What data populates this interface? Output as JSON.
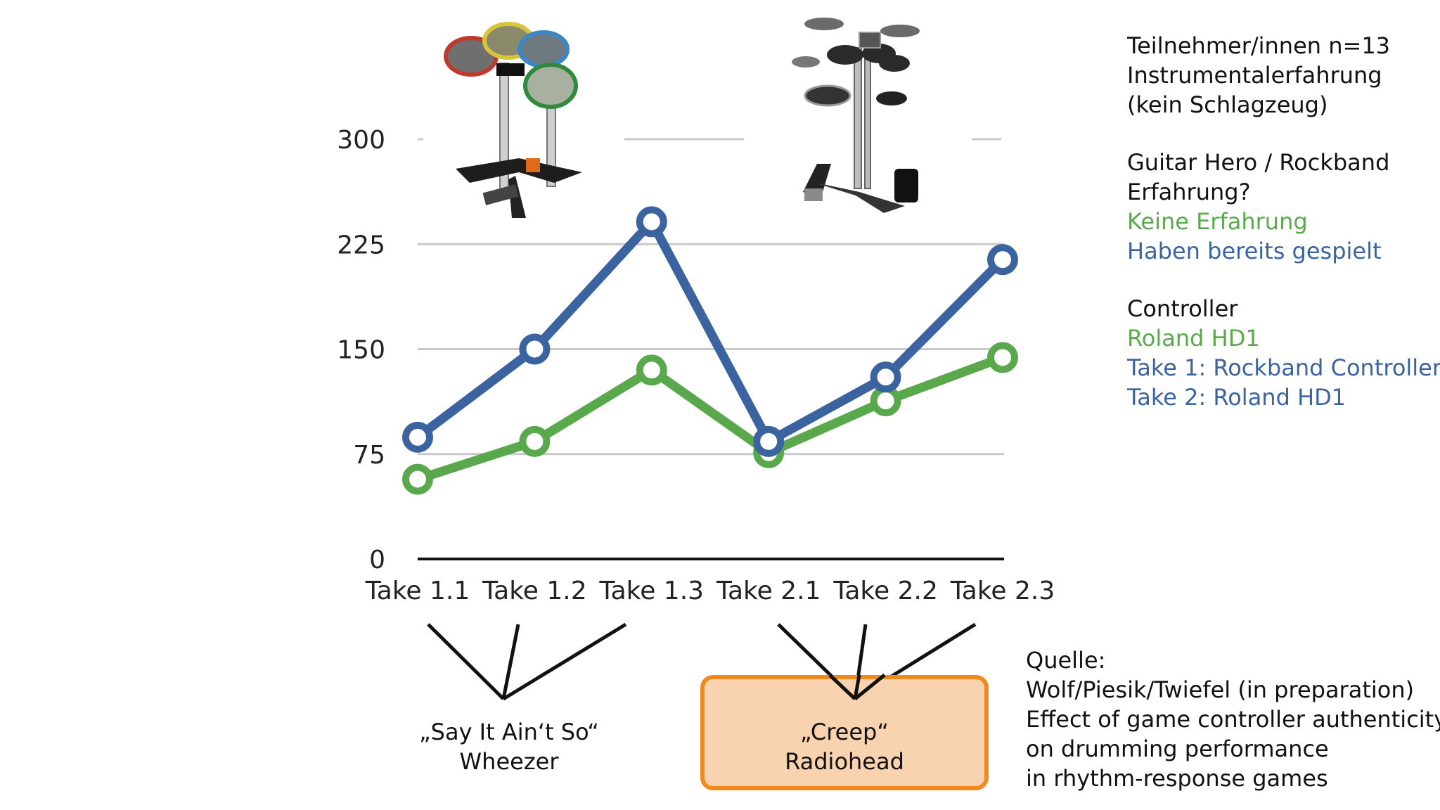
{
  "colors": {
    "blue": "#3a63a0",
    "green": "#5aa84c",
    "orange": "#f08a1c",
    "grid": "#c9c9c9"
  },
  "chart_data": {
    "type": "line",
    "categories": [
      "Take 1.1",
      "Take 1.2",
      "Take 1.3",
      "Take 2.1",
      "Take 2.2",
      "Take 2.3"
    ],
    "series": [
      {
        "name": "Haben bereits gespielt",
        "color": "#3a63a0",
        "values": [
          87,
          150,
          241,
          84,
          130,
          214
        ]
      },
      {
        "name": "Keine Erfahrung",
        "color": "#5aa84c",
        "values": [
          57,
          84,
          135,
          76,
          113,
          144
        ]
      }
    ],
    "yticks": [
      0,
      75,
      150,
      225,
      300
    ],
    "ylim": [
      0,
      300
    ],
    "grid": true,
    "legend": "right"
  },
  "info": {
    "participants": [
      "Teilnehmer/innen n=13",
      "Instrumentalerfahrung",
      "(kein Schlagzeug)"
    ],
    "experience_question": [
      "Guitar Hero / Rockband",
      "Erfahrung?"
    ],
    "legend_green": "Keine Erfahrung",
    "legend_blue": "Haben bereits gespielt",
    "controller_title": "Controller",
    "controller_green": "Roland HD1",
    "controller_take1": "Take 1: Rockband Controller",
    "controller_take2": "Take 2: Roland HD1"
  },
  "songs": [
    {
      "title": "„Say It Ain‘t So“",
      "artist": "Wheezer"
    },
    {
      "title": "„Creep“",
      "artist": "Radiohead"
    }
  ],
  "source": [
    "Quelle:",
    "Wolf/Piesik/Twiefel (in preparation)",
    "Effect of game controller authenticity",
    "on drumming performance",
    "in rhythm-response games"
  ]
}
